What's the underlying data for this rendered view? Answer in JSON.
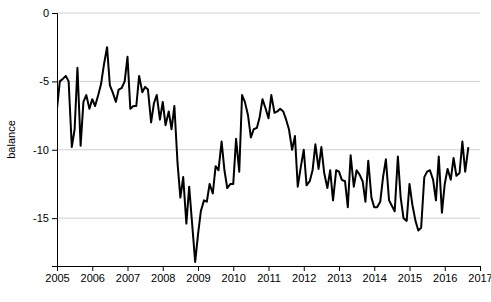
{
  "chart_data": {
    "type": "line",
    "y_label": "balance",
    "color": "#000000",
    "grid": true,
    "xlim": [
      2005,
      2017
    ],
    "xticks": [
      2005,
      2006,
      2007,
      2008,
      2009,
      2010,
      2011,
      2012,
      2013,
      2014,
      2015,
      2016,
      2017
    ],
    "ylim": [
      -18.5,
      0
    ],
    "yticks": [
      -15,
      -10,
      -5,
      0
    ],
    "x": [
      2005,
      2005.08,
      2005.17,
      2005.25,
      2005.33,
      2005.42,
      2005.5,
      2005.58,
      2005.67,
      2005.75,
      2005.83,
      2005.92,
      2006,
      2006.08,
      2006.17,
      2006.25,
      2006.33,
      2006.42,
      2006.5,
      2006.58,
      2006.67,
      2006.75,
      2006.83,
      2006.92,
      2007,
      2007.08,
      2007.17,
      2007.25,
      2007.33,
      2007.42,
      2007.5,
      2007.58,
      2007.67,
      2007.75,
      2007.83,
      2007.92,
      2008,
      2008.08,
      2008.17,
      2008.25,
      2008.33,
      2008.42,
      2008.5,
      2008.58,
      2008.67,
      2008.75,
      2008.83,
      2008.92,
      2009,
      2009.08,
      2009.17,
      2009.25,
      2009.33,
      2009.42,
      2009.5,
      2009.58,
      2009.67,
      2009.75,
      2009.83,
      2009.92,
      2010,
      2010.08,
      2010.17,
      2010.25,
      2010.33,
      2010.42,
      2010.5,
      2010.58,
      2010.67,
      2010.75,
      2010.83,
      2010.92,
      2011,
      2011.08,
      2011.17,
      2011.25,
      2011.33,
      2011.42,
      2011.5,
      2011.58,
      2011.67,
      2011.75,
      2011.83,
      2011.92,
      2012,
      2012.08,
      2012.17,
      2012.25,
      2012.33,
      2012.42,
      2012.5,
      2012.58,
      2012.67,
      2012.75,
      2012.83,
      2012.92,
      2013,
      2013.08,
      2013.17,
      2013.25,
      2013.33,
      2013.42,
      2013.5,
      2013.58,
      2013.67,
      2013.75,
      2013.83,
      2013.92,
      2014,
      2014.08,
      2014.17,
      2014.25,
      2014.33,
      2014.42,
      2014.5,
      2014.58,
      2014.67,
      2014.75,
      2014.83,
      2014.92,
      2015,
      2015.08,
      2015.17,
      2015.25,
      2015.33,
      2015.42,
      2015.5,
      2015.58,
      2015.67,
      2015.75,
      2015.83,
      2015.92,
      2016,
      2016.08,
      2016.17,
      2016.25,
      2016.33,
      2016.42,
      2016.5,
      2016.58,
      2016.67
    ],
    "values": [
      -7,
      -5,
      -4.8,
      -4.6,
      -5,
      -9.8,
      -8.5,
      -4,
      -9.7,
      -6.5,
      -6,
      -7,
      -6.3,
      -6.8,
      -6,
      -5.2,
      -3.8,
      -2.5,
      -5.3,
      -5.8,
      -6.5,
      -5.6,
      -5.5,
      -5,
      -3.2,
      -7,
      -6.8,
      -6.8,
      -4.6,
      -5.8,
      -5.4,
      -5.6,
      -8,
      -6.6,
      -6,
      -7.8,
      -6.5,
      -8.2,
      -7.2,
      -8.5,
      -6.8,
      -11,
      -13.5,
      -12,
      -15.4,
      -12.7,
      -15.3,
      -18.2,
      -16.2,
      -14.5,
      -13.7,
      -13.8,
      -12.5,
      -13.2,
      -11.2,
      -11.5,
      -9.4,
      -11.5,
      -12.8,
      -12.5,
      -12.5,
      -9.2,
      -11.6,
      -6,
      -6.5,
      -7.5,
      -9.1,
      -8.5,
      -8.4,
      -7.6,
      -6.3,
      -7,
      -7.7,
      -6,
      -7.3,
      -7.2,
      -7,
      -7.2,
      -7.8,
      -8.5,
      -10,
      -9,
      -12.7,
      -11.2,
      -10,
      -12.6,
      -12.3,
      -11.5,
      -9.6,
      -11.4,
      -9.8,
      -11.7,
      -12.8,
      -11.5,
      -13.7,
      -11.5,
      -11.6,
      -12.2,
      -12.3,
      -14.2,
      -10.4,
      -12.7,
      -11.5,
      -11.8,
      -12.3,
      -13.8,
      -10.8,
      -13.5,
      -14.2,
      -14.2,
      -13.8,
      -12,
      -10.7,
      -13.7,
      -14.1,
      -14.5,
      -10.5,
      -13.5,
      -15,
      -15.2,
      -12.5,
      -14,
      -15.2,
      -15.9,
      -15.7,
      -12,
      -11.6,
      -11.5,
      -12.2,
      -13.7,
      -10.5,
      -14.6,
      -12.5,
      -11.4,
      -12.2,
      -10.6,
      -11.9,
      -11.7,
      -9.4,
      -11.6,
      -9.8
    ]
  }
}
